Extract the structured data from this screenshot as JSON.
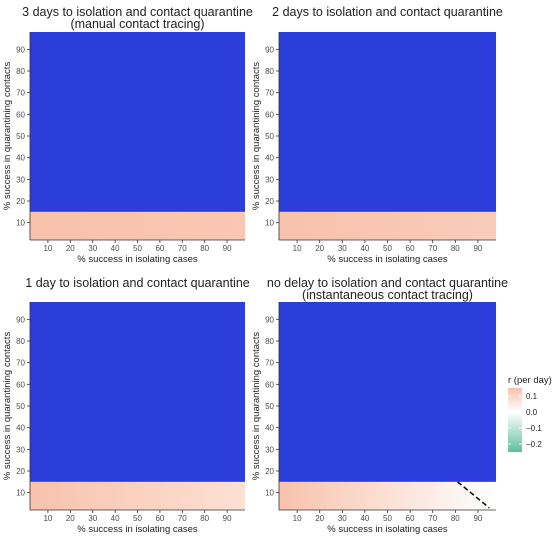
{
  "chart_data": [
    {
      "type": "heatmap",
      "title": "3 days to isolation and contact quarantine",
      "subtitle": "(manual contact tracing)",
      "xlabel": "% success in isolating cases",
      "ylabel": "% success in quarantining contacts",
      "x_ticks": [
        10,
        20,
        30,
        40,
        50,
        60,
        70,
        80,
        90
      ],
      "y_ticks": [
        10,
        20,
        30,
        40,
        50,
        60,
        70,
        80,
        90
      ],
      "xlim": [
        2,
        98
      ],
      "ylim": [
        2,
        98
      ],
      "blue_region_y_threshold": 15,
      "r_low_band": [
        0.12,
        0.11
      ],
      "has_boundary_line": false
    },
    {
      "type": "heatmap",
      "title": "2 days to isolation and contact quarantine",
      "subtitle": "",
      "xlabel": "% success in isolating cases",
      "ylabel": "% success in quarantining contacts",
      "x_ticks": [
        10,
        20,
        30,
        40,
        50,
        60,
        70,
        80,
        90
      ],
      "y_ticks": [
        10,
        20,
        30,
        40,
        50,
        60,
        70,
        80,
        90
      ],
      "xlim": [
        2,
        98
      ],
      "ylim": [
        2,
        98
      ],
      "blue_region_y_threshold": 15,
      "r_low_band": [
        0.12,
        0.1
      ],
      "has_boundary_line": false
    },
    {
      "type": "heatmap",
      "title": "1 day to isolation and contact quarantine",
      "subtitle": "",
      "xlabel": "% success in isolating cases",
      "ylabel": "% success in quarantining contacts",
      "x_ticks": [
        10,
        20,
        30,
        40,
        50,
        60,
        70,
        80,
        90
      ],
      "y_ticks": [
        10,
        20,
        30,
        40,
        50,
        60,
        70,
        80,
        90
      ],
      "xlim": [
        2,
        98
      ],
      "ylim": [
        2,
        98
      ],
      "blue_region_y_threshold": 15,
      "r_low_band": [
        0.12,
        0.06
      ],
      "has_boundary_line": false
    },
    {
      "type": "heatmap",
      "title": "no delay to isolation and contact quarantine",
      "subtitle": "(instantaneous contact tracing)",
      "xlabel": "% success in isolating cases",
      "ylabel": "% success in quarantining contacts",
      "x_ticks": [
        10,
        20,
        30,
        40,
        50,
        60,
        70,
        80,
        90
      ],
      "y_ticks": [
        10,
        20,
        30,
        40,
        50,
        60,
        70,
        80,
        90
      ],
      "xlim": [
        2,
        98
      ],
      "ylim": [
        2,
        98
      ],
      "blue_region_y_threshold": 15,
      "r_low_band": [
        0.12,
        0.0
      ],
      "has_boundary_line": true,
      "boundary_line": [
        [
          81,
          15
        ],
        [
          95,
          3
        ]
      ]
    }
  ],
  "legend": {
    "title": "r (per day)",
    "labels": [
      "0.1",
      "0.0",
      "−0.1",
      "−0.2"
    ],
    "values": [
      0.1,
      0.0,
      -0.1,
      -0.2
    ],
    "range": [
      -0.25,
      0.15
    ],
    "colors": {
      "high": "#f8c2ab",
      "mid": "#ffffff",
      "low": "#5fc0a0"
    }
  },
  "colors": {
    "blue_region": "#2b3ddb",
    "text": "#222222",
    "tick_label": "#4d4d4d",
    "axis": "#333333"
  }
}
